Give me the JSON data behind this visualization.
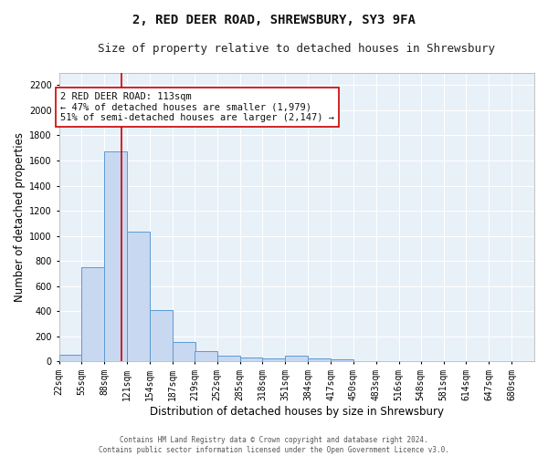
{
  "title": "2, RED DEER ROAD, SHREWSBURY, SY3 9FA",
  "subtitle": "Size of property relative to detached houses in Shrewsbury",
  "xlabel": "Distribution of detached houses by size in Shrewsbury",
  "ylabel": "Number of detached properties",
  "footer_line1": "Contains HM Land Registry data © Crown copyright and database right 2024.",
  "footer_line2": "Contains public sector information licensed under the Open Government Licence v3.0.",
  "bin_labels": [
    "22sqm",
    "55sqm",
    "88sqm",
    "121sqm",
    "154sqm",
    "187sqm",
    "219sqm",
    "252sqm",
    "285sqm",
    "318sqm",
    "351sqm",
    "384sqm",
    "417sqm",
    "450sqm",
    "483sqm",
    "516sqm",
    "548sqm",
    "581sqm",
    "614sqm",
    "647sqm",
    "680sqm"
  ],
  "bar_values": [
    50,
    750,
    1675,
    1035,
    405,
    150,
    80,
    45,
    32,
    20,
    45,
    25,
    15,
    0,
    0,
    0,
    0,
    0,
    0,
    0,
    0
  ],
  "bar_color": "#c8d8f0",
  "bar_edge_color": "#5b9bd5",
  "vline_x": 113,
  "vline_color": "#cc0000",
  "bin_edges": [
    22,
    55,
    88,
    121,
    154,
    187,
    219,
    252,
    285,
    318,
    351,
    384,
    417,
    450,
    483,
    516,
    548,
    581,
    614,
    647,
    680,
    713
  ],
  "ylim": [
    0,
    2300
  ],
  "yticks": [
    0,
    200,
    400,
    600,
    800,
    1000,
    1200,
    1400,
    1600,
    1800,
    2000,
    2200
  ],
  "annotation_title": "2 RED DEER ROAD: 113sqm",
  "annotation_line2": "← 47% of detached houses are smaller (1,979)",
  "annotation_line3": "51% of semi-detached houses are larger (2,147) →",
  "annotation_box_color": "#ffffff",
  "annotation_edge_color": "#cc0000",
  "bg_color": "#e8f0f8",
  "grid_color": "#ffffff",
  "fig_bg_color": "#ffffff",
  "title_fontsize": 10,
  "subtitle_fontsize": 9,
  "axis_label_fontsize": 8.5,
  "tick_fontsize": 7,
  "annotation_fontsize": 7.5,
  "footer_fontsize": 5.5
}
